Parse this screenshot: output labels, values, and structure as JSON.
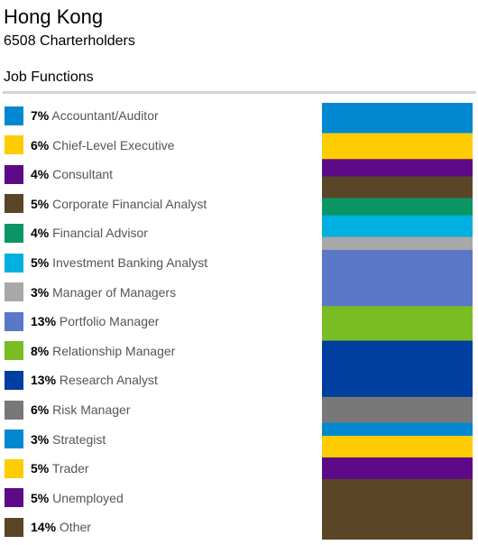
{
  "header": {
    "title": "Hong Kong",
    "subtitle": "6508 Charterholders",
    "section": "Job Functions"
  },
  "chart_data": {
    "type": "bar",
    "orientation": "stacked-vertical",
    "title": "Job Functions",
    "unit": "%",
    "categories": [
      "Accountant/Auditor",
      "Chief-Level Executive",
      "Consultant",
      "Corporate Financial Analyst",
      "Financial Advisor",
      "Investment Banking Analyst",
      "Manager of Managers",
      "Portfolio Manager",
      "Relationship Manager",
      "Research Analyst",
      "Risk Manager",
      "Strategist",
      "Trader",
      "Unemployed",
      "Other"
    ],
    "values": [
      7,
      6,
      4,
      5,
      4,
      5,
      3,
      13,
      8,
      13,
      6,
      3,
      5,
      5,
      14
    ],
    "labels": [
      "7%",
      "6%",
      "4%",
      "5%",
      "4%",
      "5%",
      "3%",
      "13%",
      "8%",
      "13%",
      "6%",
      "3%",
      "5%",
      "5%",
      "14%"
    ],
    "colors": [
      "#0288d1",
      "#ffcc00",
      "#5c0a87",
      "#5a4526",
      "#0a9564",
      "#00b0e0",
      "#a8a8a8",
      "#5b78c8",
      "#79bc24",
      "#003ea0",
      "#787878",
      "#0288d1",
      "#ffcc00",
      "#5c0a87",
      "#5a4526"
    ],
    "legend": "left"
  }
}
